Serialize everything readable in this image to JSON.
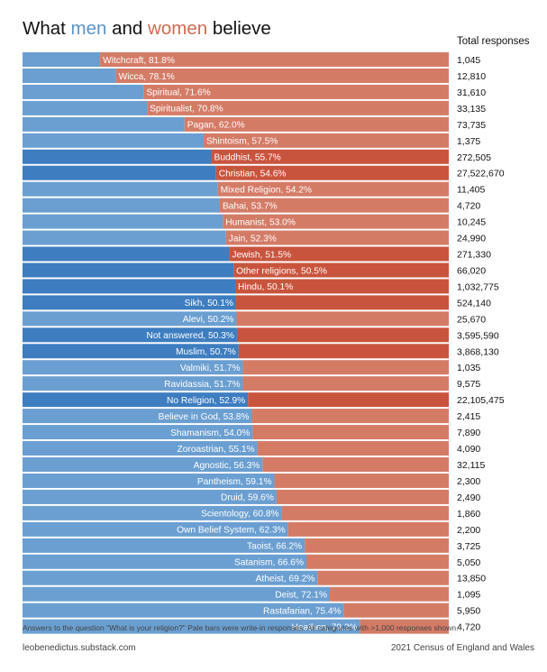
{
  "header": {
    "title_prefix": "What ",
    "title_men": "men",
    "title_mid": " and ",
    "title_women": "women",
    "title_suffix": " believe",
    "total_label": "Total responses"
  },
  "footer": {
    "note": "Answers to the question \"What is your religion?\" Pale bars were write-in responses. All categories with >1,000 responses shown.",
    "site": "leobenedictus.substack.com",
    "source": "2021 Census of England and Wales"
  },
  "colors": {
    "men_dark": "#3d7dc0",
    "men_pale": "#6b9fd1",
    "women_dark": "#c9543d",
    "women_pale": "#d47b66",
    "men_title": "#5a93c9",
    "women_title": "#cf6b52"
  },
  "chart_data": {
    "type": "bar",
    "orientation": "horizontal-stacked-100",
    "title": "What men and women believe",
    "series": [
      {
        "name": "men"
      },
      {
        "name": "women"
      }
    ],
    "categories": [
      {
        "label": "Witchcraft, 81.8%",
        "name": "Witchcraft",
        "women_pct": 81.8,
        "total": "1,045",
        "write_in": true
      },
      {
        "label": "Wicca, 78.1%",
        "name": "Wicca",
        "women_pct": 78.1,
        "total": "12,810",
        "write_in": true
      },
      {
        "label": "Spiritual, 71.6%",
        "name": "Spiritual",
        "women_pct": 71.6,
        "total": "31,610",
        "write_in": true
      },
      {
        "label": "Spiritualist, 70.8%",
        "name": "Spiritualist",
        "women_pct": 70.8,
        "total": "33,135",
        "write_in": true
      },
      {
        "label": "Pagan, 62.0%",
        "name": "Pagan",
        "women_pct": 62.0,
        "total": "73,735",
        "write_in": true
      },
      {
        "label": "Shintoism, 57.5%",
        "name": "Shintoism",
        "women_pct": 57.5,
        "total": "1,375",
        "write_in": true
      },
      {
        "label": "Buddhist, 55.7%",
        "name": "Buddhist",
        "women_pct": 55.7,
        "total": "272,505",
        "write_in": false
      },
      {
        "label": "Christian, 54.6%",
        "name": "Christian",
        "women_pct": 54.6,
        "total": "27,522,670",
        "write_in": false
      },
      {
        "label": "Mixed Religion, 54.2%",
        "name": "Mixed Religion",
        "women_pct": 54.2,
        "total": "11,405",
        "write_in": true
      },
      {
        "label": "Bahai, 53.7%",
        "name": "Bahai",
        "women_pct": 53.7,
        "total": "4,720",
        "write_in": true
      },
      {
        "label": "Humanist, 53.0%",
        "name": "Humanist",
        "women_pct": 53.0,
        "total": "10,245",
        "write_in": true
      },
      {
        "label": "Jain, 52.3%",
        "name": "Jain",
        "women_pct": 52.3,
        "total": "24,990",
        "write_in": true
      },
      {
        "label": "Jewish, 51.5%",
        "name": "Jewish",
        "women_pct": 51.5,
        "total": "271,330",
        "write_in": false
      },
      {
        "label": "Other religions, 50.5%",
        "name": "Other religions",
        "women_pct": 50.5,
        "total": "66,020",
        "write_in": false
      },
      {
        "label": "Hindu, 50.1%",
        "name": "Hindu",
        "women_pct": 50.1,
        "total": "1,032,775",
        "write_in": false
      },
      {
        "label": "Sikh, 50.1%",
        "name": "Sikh",
        "men_pct": 50.1,
        "total": "524,140",
        "write_in": false
      },
      {
        "label": "Alevi, 50.2%",
        "name": "Alevi",
        "men_pct": 50.2,
        "total": "25,670",
        "write_in": true
      },
      {
        "label": "Not answered, 50.3%",
        "name": "Not answered",
        "men_pct": 50.3,
        "total": "3,595,590",
        "write_in": false
      },
      {
        "label": "Muslim, 50.7%",
        "name": "Muslim",
        "men_pct": 50.7,
        "total": "3,868,130",
        "write_in": false
      },
      {
        "label": "Valmiki, 51.7%",
        "name": "Valmiki",
        "men_pct": 51.7,
        "total": "1,035",
        "write_in": true
      },
      {
        "label": "Ravidassia, 51.7%",
        "name": "Ravidassia",
        "men_pct": 51.7,
        "total": "9,575",
        "write_in": true
      },
      {
        "label": "No Religion, 52.9%",
        "name": "No Religion",
        "men_pct": 52.9,
        "total": "22,105,475",
        "write_in": false
      },
      {
        "label": "Believe in God, 53.8%",
        "name": "Believe in God",
        "men_pct": 53.8,
        "total": "2,415",
        "write_in": true
      },
      {
        "label": "Shamanism, 54.0%",
        "name": "Shamanism",
        "men_pct": 54.0,
        "total": "7,890",
        "write_in": true
      },
      {
        "label": "Zoroastrian, 55.1%",
        "name": "Zoroastrian",
        "men_pct": 55.1,
        "total": "4,090",
        "write_in": true
      },
      {
        "label": "Agnostic, 56.3%",
        "name": "Agnostic",
        "men_pct": 56.3,
        "total": "32,115",
        "write_in": true
      },
      {
        "label": "Pantheism, 59.1%",
        "name": "Pantheism",
        "men_pct": 59.1,
        "total": "2,300",
        "write_in": true
      },
      {
        "label": "Druid, 59.6%",
        "name": "Druid",
        "men_pct": 59.6,
        "total": "2,490",
        "write_in": true
      },
      {
        "label": "Scientology, 60.8%",
        "name": "Scientology",
        "men_pct": 60.8,
        "total": "1,860",
        "write_in": true
      },
      {
        "label": "Own Belief System, 62.3%",
        "name": "Own Belief System",
        "men_pct": 62.3,
        "total": "2,200",
        "write_in": true
      },
      {
        "label": "Taoist, 66.2%",
        "name": "Taoist",
        "men_pct": 66.2,
        "total": "3,725",
        "write_in": true
      },
      {
        "label": "Satanism, 66.6%",
        "name": "Satanism",
        "men_pct": 66.6,
        "total": "5,050",
        "write_in": true
      },
      {
        "label": "Atheist, 69.2%",
        "name": "Atheist",
        "men_pct": 69.2,
        "total": "13,850",
        "write_in": true
      },
      {
        "label": "Deist, 72.1%",
        "name": "Deist",
        "men_pct": 72.1,
        "total": "1,095",
        "write_in": true
      },
      {
        "label": "Rastafarian, 75.4%",
        "name": "Rastafarian",
        "men_pct": 75.4,
        "total": "5,950",
        "write_in": true
      },
      {
        "label": "Heathen, 79.2%",
        "name": "Heathen",
        "men_pct": 79.2,
        "total": "4,720",
        "write_in": true
      }
    ]
  }
}
